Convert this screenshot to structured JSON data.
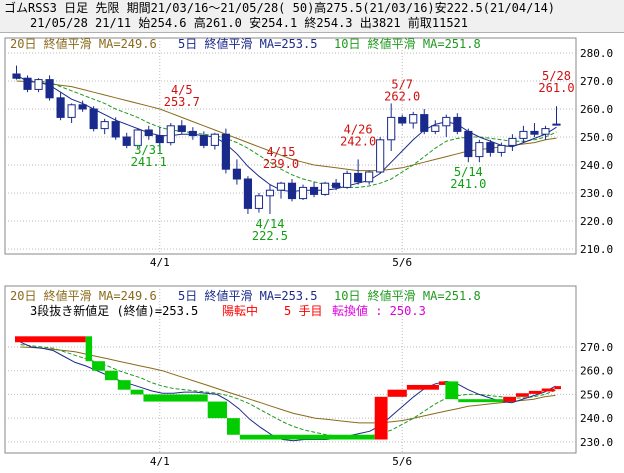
{
  "header": {
    "line1": "ゴムRSS3 日足 先限 期間21/03/16～21/05/28( 50)高275.5(21/03/16)安222.5(21/04/14)",
    "line2": "21/05/28 21/11 始254.6 高261.0 安254.1 終254.3 出3821 前取11521"
  },
  "colors": {
    "up_candle": "#ffffff",
    "down_candle": "#1a2a8c",
    "ma5": "#1a2a8c",
    "ma10": "#1e9a1e",
    "ma20": "#8a6a1a",
    "annotation": "#d01010",
    "annotation_green": "#10a010",
    "kagi_up": "#ff0000",
    "kagi_down": "#00cc00",
    "pink": "#dd00dd"
  },
  "chart_data": [
    {
      "type": "candlestick",
      "ylim": [
        210,
        280
      ],
      "yticks": [
        "280.0",
        "270.0",
        "260.0",
        "250.0",
        "240.0",
        "230.0",
        "220.0",
        "210.0"
      ],
      "xticks": [
        {
          "label": "4/1",
          "index": 13
        },
        {
          "label": "5/6",
          "index": 35
        }
      ],
      "legend": [
        {
          "text": "20日 終値平滑 MA=249.6",
          "series": "ma20"
        },
        {
          "text": "5日 終値平滑 MA=253.5",
          "series": "ma5"
        },
        {
          "text": "10日 終値平滑 MA=251.8",
          "series": "ma10"
        }
      ],
      "candles": [
        [
          272.5,
          275.5,
          270.5,
          271.0
        ],
        [
          271.0,
          272.0,
          266.0,
          267.0
        ],
        [
          267.0,
          271.0,
          266.0,
          270.5
        ],
        [
          270.5,
          272.0,
          263.0,
          264.0
        ],
        [
          264.0,
          266.0,
          256.0,
          257.0
        ],
        [
          257.0,
          262.0,
          255.0,
          261.5
        ],
        [
          261.5,
          263.0,
          259.0,
          260.0
        ],
        [
          260.0,
          261.0,
          252.0,
          253.0
        ],
        [
          253.0,
          256.5,
          251.0,
          255.5
        ],
        [
          255.5,
          257.0,
          249.0,
          250.0
        ],
        [
          250.0,
          251.5,
          246.0,
          247.0
        ],
        [
          247.0,
          253.0,
          246.0,
          252.5
        ],
        [
          252.5,
          254.0,
          249.0,
          250.5
        ],
        [
          250.5,
          253.5,
          245.0,
          248.0
        ],
        [
          248.0,
          255.0,
          247.0,
          254.0
        ],
        [
          254.0,
          256.0,
          251.0,
          252.0
        ],
        [
          252.0,
          253.5,
          249.0,
          250.5
        ],
        [
          250.5,
          252.0,
          246.0,
          247.0
        ],
        [
          247.0,
          251.5,
          245.5,
          251.0
        ],
        [
          251.0,
          253.0,
          237.0,
          238.5
        ],
        [
          238.5,
          242.0,
          233.0,
          235.0
        ],
        [
          235.0,
          236.0,
          222.5,
          224.5
        ],
        [
          224.5,
          230.0,
          223.0,
          229.0
        ],
        [
          229.0,
          233.0,
          222.5,
          231.0
        ],
        [
          231.0,
          234.0,
          228.0,
          233.5
        ],
        [
          233.5,
          235.0,
          227.0,
          228.0
        ],
        [
          228.0,
          233.0,
          227.5,
          232.0
        ],
        [
          232.0,
          234.0,
          228.5,
          229.5
        ],
        [
          229.5,
          234.0,
          229.0,
          233.5
        ],
        [
          233.5,
          235.0,
          231.0,
          232.0
        ],
        [
          232.0,
          238.0,
          231.5,
          237.0
        ],
        [
          237.0,
          242.0,
          233.0,
          234.0
        ],
        [
          234.0,
          238.0,
          233.0,
          237.5
        ],
        [
          237.5,
          250.0,
          237.0,
          249.0
        ],
        [
          249.0,
          262.0,
          245.0,
          257.0
        ],
        [
          257.0,
          258.0,
          254.0,
          255.0
        ],
        [
          255.0,
          259.0,
          253.0,
          258.0
        ],
        [
          258.0,
          260.0,
          251.0,
          252.0
        ],
        [
          252.0,
          256.0,
          251.0,
          254.0
        ],
        [
          254.0,
          258.0,
          250.0,
          257.0
        ],
        [
          257.0,
          258.5,
          251.0,
          252.0
        ],
        [
          252.0,
          253.0,
          241.0,
          243.0
        ],
        [
          243.0,
          249.0,
          241.0,
          248.0
        ],
        [
          248.0,
          249.0,
          243.0,
          244.5
        ],
        [
          244.5,
          248.0,
          243.0,
          247.0
        ],
        [
          247.0,
          251.0,
          245.0,
          249.5
        ],
        [
          249.5,
          254.0,
          248.0,
          252.0
        ],
        [
          252.0,
          255.0,
          250.0,
          251.0
        ],
        [
          251.0,
          254.0,
          249.0,
          253.0
        ],
        [
          254.6,
          261.0,
          254.1,
          254.3
        ]
      ],
      "ma5": [
        272.0,
        270.0,
        269.5,
        268.5,
        266.0,
        263.5,
        262.0,
        260.0,
        258.0,
        256.0,
        254.5,
        253.0,
        251.5,
        250.5,
        250.5,
        251.0,
        251.0,
        250.5,
        250.0,
        247.5,
        244.0,
        239.5,
        236.0,
        233.0,
        231.0,
        230.5,
        231.0,
        231.0,
        231.0,
        231.5,
        232.5,
        233.5,
        234.5,
        237.0,
        241.0,
        245.0,
        249.0,
        252.5,
        254.5,
        255.5,
        254.5,
        252.0,
        250.0,
        248.5,
        247.0,
        246.5,
        248.0,
        249.5,
        251.0,
        253.5
      ],
      "ma10": [
        271.0,
        270.5,
        270.0,
        269.5,
        268.0,
        266.5,
        265.0,
        263.5,
        262.0,
        260.0,
        258.5,
        257.0,
        255.0,
        253.5,
        252.5,
        252.0,
        251.5,
        251.0,
        250.5,
        249.5,
        248.0,
        246.0,
        243.5,
        241.0,
        238.5,
        236.5,
        235.0,
        234.0,
        233.0,
        232.5,
        232.0,
        232.0,
        232.5,
        233.5,
        235.0,
        237.5,
        240.0,
        243.0,
        246.0,
        248.5,
        249.5,
        250.0,
        250.0,
        249.5,
        249.0,
        248.5,
        248.5,
        249.0,
        250.0,
        251.8
      ],
      "ma20": [
        270.0,
        269.8,
        269.5,
        269.0,
        268.5,
        268.0,
        267.0,
        266.0,
        265.0,
        264.0,
        263.0,
        262.0,
        261.0,
        260.0,
        258.5,
        257.0,
        255.5,
        254.0,
        252.5,
        251.0,
        249.5,
        248.0,
        246.5,
        245.0,
        243.5,
        242.0,
        241.0,
        240.0,
        239.5,
        239.0,
        238.5,
        238.0,
        238.0,
        238.0,
        238.5,
        239.0,
        240.0,
        241.0,
        242.0,
        243.0,
        244.0,
        245.0,
        245.5,
        246.0,
        246.5,
        247.0,
        247.5,
        248.0,
        249.0,
        249.6
      ],
      "annotations": [
        {
          "label": "4/5",
          "value": "253.7",
          "index": 15,
          "color": "red",
          "pos": "above"
        },
        {
          "label": "4/15",
          "value": "239.0",
          "index": 24,
          "color": "red",
          "pos": "above"
        },
        {
          "label": "4/26",
          "value": "242.0",
          "index": 31,
          "color": "red",
          "pos": "above"
        },
        {
          "label": "5/7",
          "value": "262.0",
          "index": 35,
          "color": "red",
          "pos": "above"
        },
        {
          "label": "5/28",
          "value": "261.0",
          "index": 49,
          "color": "red",
          "pos": "above"
        },
        {
          "label": "3/31",
          "value": "241.1",
          "index": 12,
          "color": "green",
          "pos": "below"
        },
        {
          "label": "4/14",
          "value": "222.5",
          "index": 23,
          "color": "green",
          "pos": "below"
        },
        {
          "label": "5/14",
          "value": "241.0",
          "index": 41,
          "color": "green",
          "pos": "below"
        }
      ]
    },
    {
      "type": "three_line_break",
      "ylim": [
        227,
        278
      ],
      "yticks": [
        "270.0",
        "260.0",
        "250.0",
        "240.0",
        "230.0"
      ],
      "xticks": [
        {
          "label": "4/1",
          "index": 13
        },
        {
          "label": "5/6",
          "index": 35
        }
      ],
      "legend": [
        {
          "text": "20日 終値平滑 MA=249.6",
          "series": "ma20"
        },
        {
          "text": "5日 終値平滑 MA=253.5",
          "series": "ma5"
        },
        {
          "text": "10日 終値平滑 MA=251.8",
          "series": "ma10"
        }
      ],
      "subtitle": {
        "main": "3段抜き新値足 (終値)=253.5",
        "state": "陽転中",
        "count": "5 手目",
        "reversal": "転換値 : 250.3"
      },
      "bricks": [
        {
          "dir": "up",
          "from": 272.0,
          "to": 274.5,
          "x0": 0,
          "x1": 11
        },
        {
          "dir": "down",
          "from": 274.5,
          "to": 264.0,
          "x0": 11,
          "x1": 12
        },
        {
          "dir": "down",
          "from": 264.0,
          "to": 260.0,
          "x0": 12,
          "x1": 14
        },
        {
          "dir": "down",
          "from": 260.0,
          "to": 256.0,
          "x0": 14,
          "x1": 16
        },
        {
          "dir": "down",
          "from": 256.0,
          "to": 252.0,
          "x0": 16,
          "x1": 18
        },
        {
          "dir": "down",
          "from": 252.0,
          "to": 250.0,
          "x0": 18,
          "x1": 20
        },
        {
          "dir": "down",
          "from": 250.0,
          "to": 247.0,
          "x0": 20,
          "x1": 30
        },
        {
          "dir": "down",
          "from": 247.0,
          "to": 240.0,
          "x0": 30,
          "x1": 33
        },
        {
          "dir": "down",
          "from": 240.0,
          "to": 233.0,
          "x0": 33,
          "x1": 35
        },
        {
          "dir": "down",
          "from": 233.0,
          "to": 231.0,
          "x0": 35,
          "x1": 56
        },
        {
          "dir": "up",
          "from": 231.0,
          "to": 249.0,
          "x0": 56,
          "x1": 58
        },
        {
          "dir": "up",
          "from": 249.0,
          "to": 252.0,
          "x0": 58,
          "x1": 61
        },
        {
          "dir": "up",
          "from": 252.0,
          "to": 254.0,
          "x0": 61,
          "x1": 66
        },
        {
          "dir": "up",
          "from": 254.0,
          "to": 255.5,
          "x0": 66,
          "x1": 67
        },
        {
          "dir": "down",
          "from": 255.5,
          "to": 248.0,
          "x0": 67,
          "x1": 69
        },
        {
          "dir": "down",
          "from": 248.0,
          "to": 247.0,
          "x0": 69,
          "x1": 76
        },
        {
          "dir": "up",
          "from": 247.0,
          "to": 249.0,
          "x0": 76,
          "x1": 78
        },
        {
          "dir": "up",
          "from": 249.0,
          "to": 250.5,
          "x0": 78,
          "x1": 80
        },
        {
          "dir": "up",
          "from": 250.5,
          "to": 251.5,
          "x0": 80,
          "x1": 82
        },
        {
          "dir": "up",
          "from": 251.5,
          "to": 252.5,
          "x0": 82,
          "x1": 84
        },
        {
          "dir": "up",
          "from": 252.5,
          "to": 253.5,
          "x0": 84,
          "x1": 85
        }
      ]
    }
  ]
}
